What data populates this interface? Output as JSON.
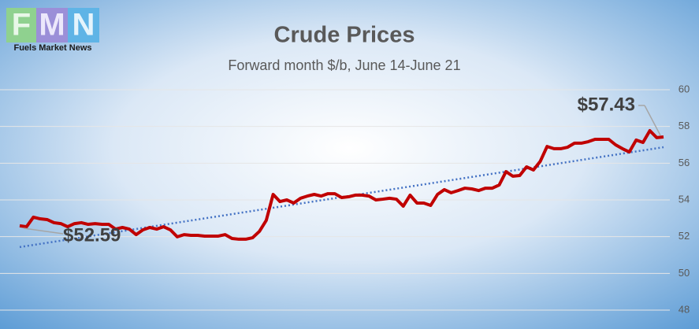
{
  "logo": {
    "letters": [
      "F",
      "M",
      "N"
    ],
    "tagline": "Fuels Market News"
  },
  "chart_data": {
    "type": "line",
    "title": "Crude Prices",
    "subtitle": "Forward month $/b, June 14-June 21",
    "series": [
      {
        "name": "Crude",
        "color": "#c00000",
        "values": [
          52.59,
          52.54,
          53.06,
          52.97,
          52.93,
          52.76,
          52.71,
          52.54,
          52.71,
          52.76,
          52.67,
          52.71,
          52.67,
          52.67,
          52.41,
          52.5,
          52.41,
          52.11,
          52.37,
          52.5,
          52.41,
          52.54,
          52.37,
          51.99,
          52.11,
          52.07,
          52.07,
          52.03,
          52.03,
          52.03,
          52.11,
          51.9,
          51.86,
          51.86,
          51.94,
          52.29,
          52.89,
          54.3,
          53.91,
          54.0,
          53.83,
          54.09,
          54.21,
          54.3,
          54.21,
          54.34,
          54.34,
          54.13,
          54.17,
          54.26,
          54.26,
          54.21,
          54.0,
          54.04,
          54.09,
          54.04,
          53.66,
          54.26,
          53.83,
          53.83,
          53.7,
          54.3,
          54.56,
          54.39,
          54.51,
          54.64,
          54.6,
          54.51,
          54.64,
          54.64,
          54.81,
          55.54,
          55.29,
          55.33,
          55.8,
          55.63,
          56.1,
          56.91,
          56.79,
          56.79,
          56.87,
          57.09,
          57.09,
          57.17,
          57.3,
          57.3,
          57.3,
          57.0,
          56.79,
          56.61,
          57.26,
          57.13,
          57.77,
          57.39,
          57.43
        ]
      }
    ],
    "trendline": {
      "color": "#4472c4"
    },
    "annotations": [
      "$52.59",
      "$57.43"
    ],
    "ylim": [
      48,
      60
    ],
    "yticks": [
      48,
      50,
      52,
      54,
      56,
      58,
      60
    ],
    "grid": true
  }
}
